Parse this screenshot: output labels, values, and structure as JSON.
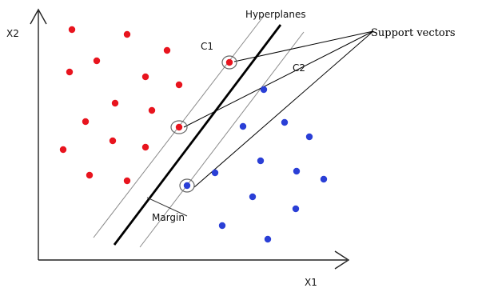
{
  "labels": {
    "y_axis": "X2",
    "x_axis": "X1",
    "hyperplanes": "Hyperplanes",
    "class1": "C1",
    "class2": "C2",
    "support_vectors": "Support vectors",
    "margin": "Margin"
  },
  "colors": {
    "class1": "#e8141e",
    "class2": "#2a3fd6",
    "hyperplane_main": "#000000",
    "hyperplane_margin": "#8a8a8a",
    "axis": "#222222"
  },
  "chart_data": {
    "type": "scatter",
    "xlabel": "X1",
    "ylabel": "X2",
    "series": [
      {
        "name": "C1",
        "points": [
          [
            90,
            37
          ],
          [
            159,
            43
          ],
          [
            121,
            76
          ],
          [
            209,
            63
          ],
          [
            87,
            90
          ],
          [
            182,
            96
          ],
          [
            224,
            106
          ],
          [
            144,
            129
          ],
          [
            190,
            138
          ],
          [
            107,
            152
          ],
          [
            141,
            176
          ],
          [
            182,
            184
          ],
          [
            79,
            187
          ],
          [
            112,
            219
          ],
          [
            159,
            226
          ],
          [
            287,
            78
          ],
          [
            224,
            159
          ]
        ],
        "support_vector_indices": [
          15,
          16
        ]
      },
      {
        "name": "C2",
        "points": [
          [
            330,
            112
          ],
          [
            304,
            158
          ],
          [
            356,
            153
          ],
          [
            387,
            171
          ],
          [
            326,
            201
          ],
          [
            269,
            216
          ],
          [
            371,
            214
          ],
          [
            405,
            224
          ],
          [
            316,
            246
          ],
          [
            370,
            261
          ],
          [
            278,
            282
          ],
          [
            335,
            299
          ],
          [
            234,
            232
          ]
        ],
        "support_vector_indices": [
          12
        ]
      }
    ]
  }
}
